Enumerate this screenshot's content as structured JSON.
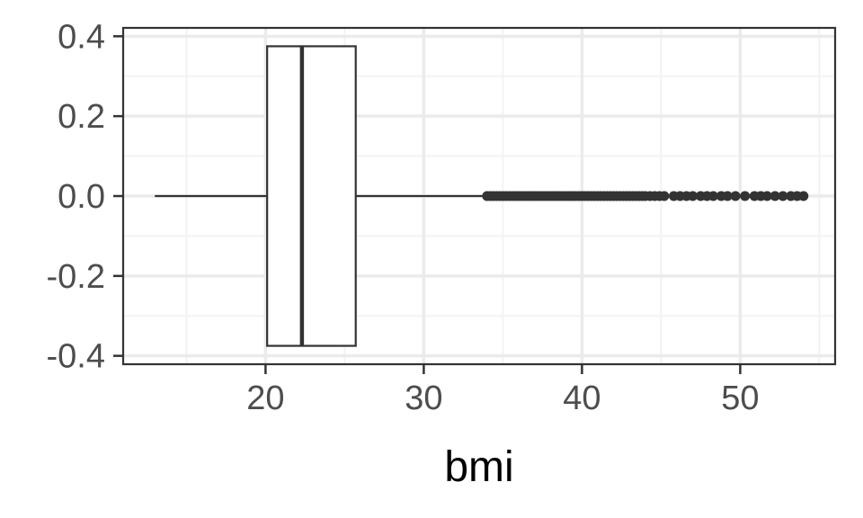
{
  "chart_data": {
    "type": "boxplot",
    "orientation": "horizontal",
    "title": "",
    "xlabel": "bmi",
    "ylabel": "",
    "xlim": [
      11,
      56
    ],
    "ylim": [
      -0.4,
      0.4
    ],
    "x_ticks": [
      20,
      30,
      40,
      50
    ],
    "x_tick_labels": [
      "20",
      "30",
      "40",
      "50"
    ],
    "y_ticks": [
      -0.4,
      -0.2,
      0.0,
      0.2,
      0.4
    ],
    "y_tick_labels": [
      "-0.4",
      "-0.2",
      "0.0",
      "0.2",
      "0.4"
    ],
    "grid": true,
    "box": {
      "whisker_low": 13.0,
      "q1": 20.1,
      "median": 22.3,
      "q3": 25.7,
      "whisker_high": 33.8,
      "y_low": -0.375,
      "y_high": 0.375
    },
    "outliers": [
      34.0,
      34.2,
      34.4,
      34.6,
      34.8,
      35.0,
      35.2,
      35.4,
      35.6,
      35.8,
      36.0,
      36.2,
      36.4,
      36.6,
      36.8,
      37.0,
      37.2,
      37.4,
      37.6,
      37.8,
      38.0,
      38.2,
      38.4,
      38.6,
      38.8,
      39.0,
      39.2,
      39.4,
      39.6,
      39.8,
      40.0,
      40.2,
      40.4,
      40.6,
      40.8,
      41.0,
      41.2,
      41.4,
      41.6,
      41.8,
      42.0,
      42.2,
      42.4,
      42.6,
      42.8,
      43.0,
      43.2,
      43.4,
      43.6,
      43.8,
      44.0,
      44.3,
      44.6,
      44.9,
      45.2,
      45.8,
      46.2,
      46.6,
      47.0,
      47.5,
      47.9,
      48.3,
      48.8,
      49.2,
      49.7,
      50.3,
      50.9,
      51.3,
      51.7,
      52.2,
      52.7,
      53.2,
      53.6,
      54.0
    ],
    "colors": {
      "panel_border": "#333333",
      "grid_major": "#ebebeb",
      "grid_minor": "#f3f3f3",
      "box_fill": "#ffffff",
      "box_line": "#333333",
      "points": "#333333"
    }
  }
}
